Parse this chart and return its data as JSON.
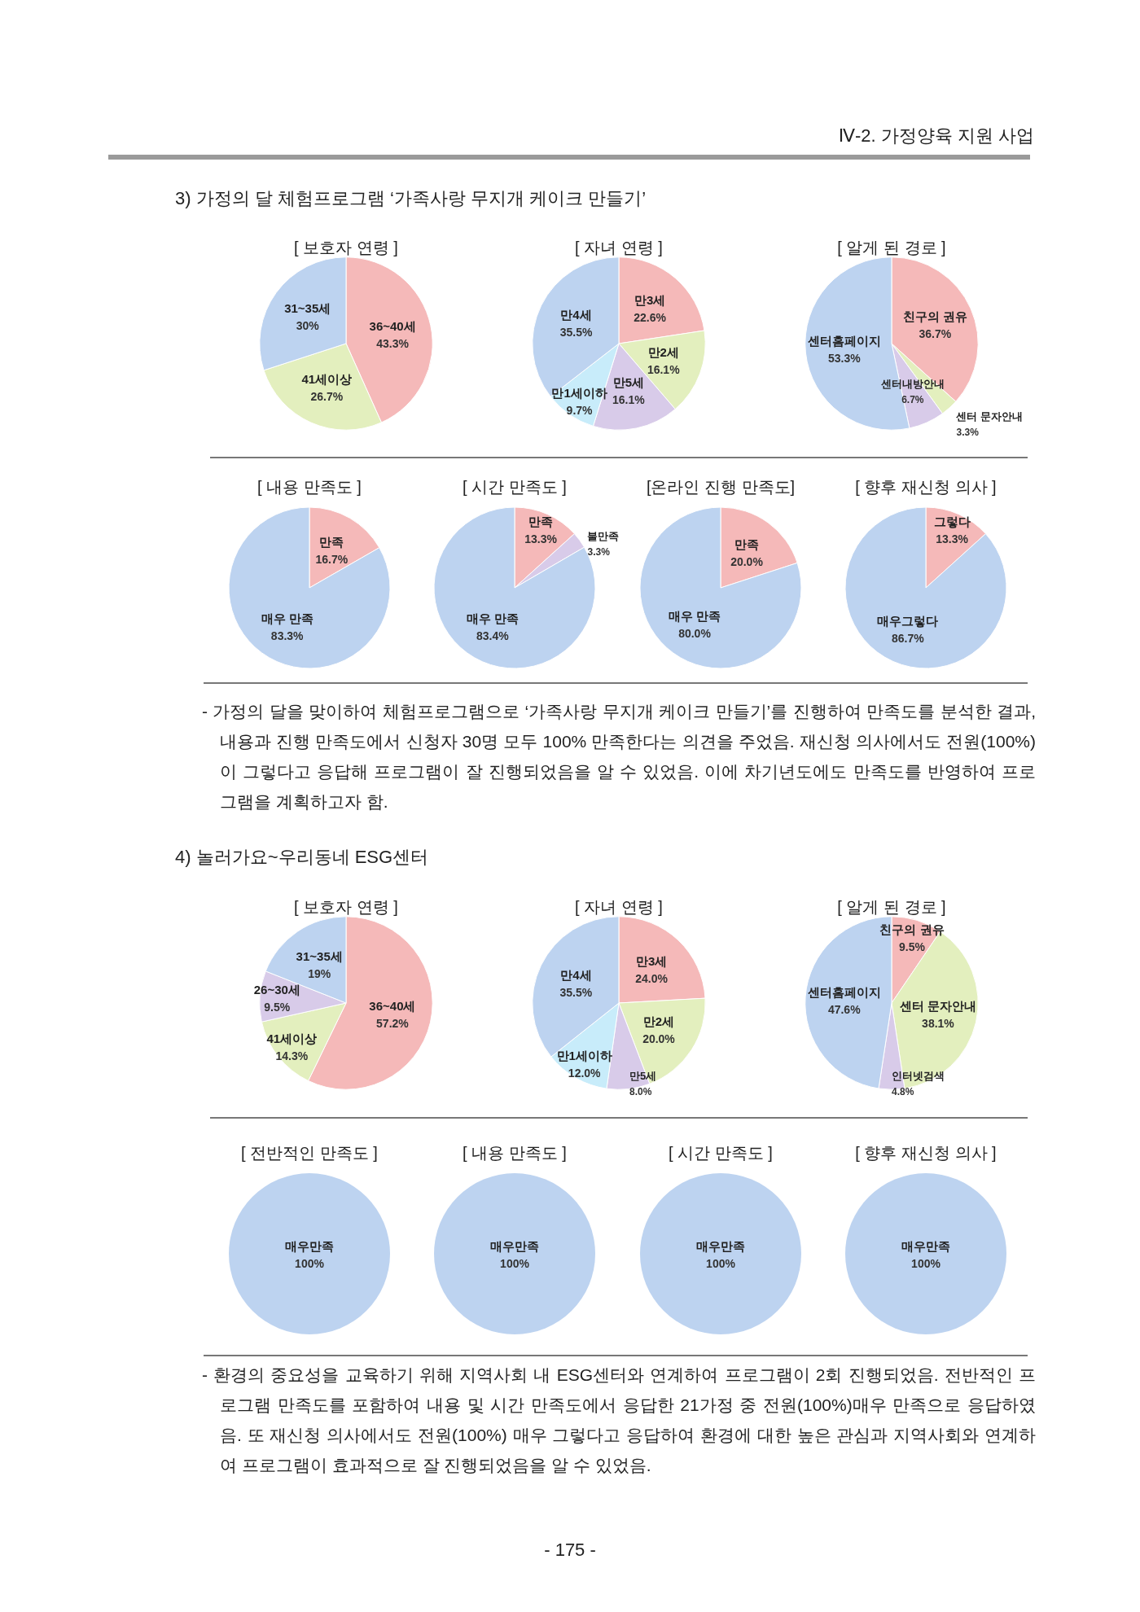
{
  "chart_data": [
    {
      "type": "other",
      "annotations": [
        "Ⅳ-2. 가정양육 지원 사업"
      ]
    },
    {
      "type": "other",
      "title": "3) 가정의 달 체험프로그램 ‘가족사랑 무지개 케이크 만들기’"
    },
    {
      "type": "pie",
      "title": "[ 보호자 연령 ]",
      "categories": [
        "36~40세",
        "41세이상",
        "31~35세"
      ],
      "values": [
        43.3,
        26.7,
        30
      ],
      "value_labels": [
        "43.3%",
        "26.7%",
        "30%"
      ],
      "colors": [
        "#f5b9b9",
        "#e3efbe",
        "#bdd3f0"
      ]
    },
    {
      "type": "pie",
      "title": "[ 자녀 연령 ]",
      "categories": [
        "만3세",
        "만2세",
        "만5세",
        "만1세이하",
        "만4세"
      ],
      "values": [
        22.6,
        16.1,
        16.1,
        9.7,
        35.5
      ],
      "value_labels": [
        "22.6%",
        "16.1%",
        "16.1%",
        "9.7%",
        "35.5%"
      ],
      "colors": [
        "#f5b9b9",
        "#e3efbe",
        "#d8cbe9",
        "#c8ecfa",
        "#bdd3f0"
      ]
    },
    {
      "type": "pie",
      "title": "[ 알게 된 경로 ]",
      "categories": [
        "친구의 권유",
        "센터 문자안내",
        "센터내방안내",
        "센터홈페이지"
      ],
      "values": [
        36.7,
        3.3,
        6.7,
        53.3
      ],
      "value_labels": [
        "36.7%",
        "3.3%",
        "6.7%",
        "53.3%"
      ],
      "colors": [
        "#f5b9b9",
        "#e3efbe",
        "#d8cbe9",
        "#bdd3f0"
      ]
    },
    {
      "type": "pie",
      "title": "[ 내용 만족도 ]",
      "categories": [
        "만족",
        "매우 만족"
      ],
      "values": [
        16.7,
        83.3
      ],
      "value_labels": [
        "16.7%",
        "83.3%"
      ],
      "colors": [
        "#f5b9b9",
        "#bdd3f0"
      ]
    },
    {
      "type": "pie",
      "title": "[ 시간 만족도 ]",
      "categories": [
        "만족",
        "불만족",
        "매우 만족"
      ],
      "values": [
        13.3,
        3.3,
        83.4
      ],
      "value_labels": [
        "13.3%",
        "3.3%",
        "83.4%"
      ],
      "colors": [
        "#f5b9b9",
        "#d8cbe9",
        "#bdd3f0"
      ]
    },
    {
      "type": "pie",
      "title": "[온라인 진행 만족도]",
      "categories": [
        "만족",
        "매우 만족"
      ],
      "values": [
        20.0,
        80.0
      ],
      "value_labels": [
        "20.0%",
        "80.0%"
      ],
      "colors": [
        "#f5b9b9",
        "#bdd3f0"
      ]
    },
    {
      "type": "pie",
      "title": "[ 향후 재신청 의사 ]",
      "categories": [
        "그렇다",
        "매우그렇다"
      ],
      "values": [
        13.3,
        86.7
      ],
      "value_labels": [
        "13.3%",
        "86.7%"
      ],
      "colors": [
        "#f5b9b9",
        "#bdd3f0"
      ]
    },
    {
      "type": "other",
      "annotations": [
        "- 가정의 달을 맞이하여 체험프로그램으로 ‘가족사랑 무지개 케이크 만들기’를 진행하여 만족도를 분석한 결과, 내용과 진행 만족도에서 신청자 30명 모두 100% 만족한다는 의견을 주었음. 재신청 의사에서도 전원(100%)이 그렇다고 응답해 프로그램이 잘 진행되었음을 알 수 있었음. 이에 차기년도에도 만족도를 반영하여 프로그램을 계획하고자 함."
      ]
    },
    {
      "type": "other",
      "title": "4) 놀러가요~우리동네 ESG센터"
    },
    {
      "type": "pie",
      "title": "[ 보호자 연령 ]",
      "categories": [
        "36~40세",
        "41세이상",
        "26~30세",
        "31~35세"
      ],
      "values": [
        57.2,
        14.3,
        9.5,
        19
      ],
      "value_labels": [
        "57.2%",
        "14.3%",
        "9.5%",
        "19%"
      ],
      "colors": [
        "#f5b9b9",
        "#e3efbe",
        "#d8cbe9",
        "#bdd3f0"
      ]
    },
    {
      "type": "pie",
      "title": "[ 자녀 연령 ]",
      "categories": [
        "만3세",
        "만2세",
        "만5세",
        "만1세이하",
        "만4세"
      ],
      "values": [
        24.0,
        20.0,
        8.0,
        12.0,
        35.5
      ],
      "value_labels": [
        "24.0%",
        "20.0%",
        "8.0%",
        "12.0%",
        "35.5%"
      ],
      "colors": [
        "#f5b9b9",
        "#e3efbe",
        "#d8cbe9",
        "#c8ecfa",
        "#bdd3f0"
      ]
    },
    {
      "type": "pie",
      "title": "[ 알게 된 경로 ]",
      "categories": [
        "친구의 권유",
        "센터 문자안내",
        "인터넷검색",
        "센터홈페이지"
      ],
      "values": [
        9.5,
        38.1,
        4.8,
        47.6
      ],
      "value_labels": [
        "9.5%",
        "38.1%",
        "4.8%",
        "47.6%"
      ],
      "colors": [
        "#f5b9b9",
        "#e3efbe",
        "#d8cbe9",
        "#bdd3f0"
      ]
    },
    {
      "type": "pie",
      "title": "[ 전반적인 만족도 ]",
      "categories": [
        "매우만족"
      ],
      "values": [
        100
      ],
      "value_labels": [
        "100%"
      ],
      "colors": [
        "#bdd3f0"
      ]
    },
    {
      "type": "pie",
      "title": "[ 내용 만족도 ]",
      "categories": [
        "매우만족"
      ],
      "values": [
        100
      ],
      "value_labels": [
        "100%"
      ],
      "colors": [
        "#bdd3f0"
      ]
    },
    {
      "type": "pie",
      "title": "[ 시간 만족도 ]",
      "categories": [
        "매우만족"
      ],
      "values": [
        100
      ],
      "value_labels": [
        "100%"
      ],
      "colors": [
        "#bdd3f0"
      ]
    },
    {
      "type": "pie",
      "title": "[ 향후 재신청 의사 ]",
      "categories": [
        "매우만족"
      ],
      "values": [
        100
      ],
      "value_labels": [
        "100%"
      ],
      "colors": [
        "#bdd3f0"
      ]
    },
    {
      "type": "other",
      "annotations": [
        "- 환경의 중요성을 교육하기 위해 지역사회 내 ESG센터와 연계하여 프로그램이 2회 진행되었음. 전반적인 프로그램 만족도를 포함하여 내용 및 시간 만족도에서 응답한 21가정 중 전원(100%)매우 만족으로 응답하였음. 또 재신청 의사에서도 전원(100%) 매우 그렇다고 응답하여 환경에 대한 높은 관심과 지역사회와 연계하여 프로그램이 효과적으로 잘 진행되었음을 알 수 있었음."
      ]
    },
    {
      "type": "other",
      "annotations": [
        "- 175 -"
      ]
    }
  ]
}
